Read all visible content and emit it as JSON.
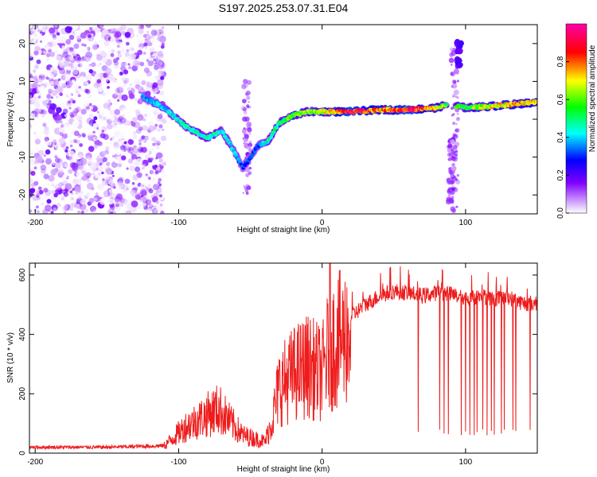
{
  "title": "S197.2025.253.07.31.E04",
  "chart_data": [
    {
      "type": "heatmap",
      "xlabel": "Height of straight line (km)",
      "ylabel": "Frequency (Hz)",
      "xlim": [
        -204,
        150
      ],
      "ylim": [
        -25,
        25
      ],
      "x_ticks": [
        -200,
        -100,
        0,
        100
      ],
      "y_ticks": [
        -20,
        -10,
        0,
        10,
        20
      ],
      "colorbar": {
        "label": "Normalized spectral amplitude",
        "range": [
          0,
          1
        ],
        "ticks": [
          "0.0",
          "0.2",
          "0.4",
          "0.6",
          "0.8"
        ],
        "colors": [
          "#ffffff",
          "#8000ff",
          "#0000ff",
          "#00ffff",
          "#00ff00",
          "#ffff00",
          "#ff0000",
          "#ff00ff"
        ]
      },
      "trace": {
        "x": [
          -125,
          -110,
          -95,
          -80,
          -70,
          -62,
          -55,
          -45,
          -38,
          -30,
          -20,
          -10,
          0,
          20,
          40,
          60,
          80,
          88,
          100,
          120,
          150
        ],
        "y": [
          6,
          3,
          -2,
          -5,
          -3,
          -8,
          -13,
          -7,
          -6,
          -1,
          1,
          2,
          2,
          2,
          2.5,
          2.5,
          3,
          4,
          3,
          3.5,
          4.5
        ],
        "amplitude": [
          0.35,
          0.4,
          0.45,
          0.45,
          0.45,
          0.4,
          0.3,
          0.3,
          0.45,
          0.5,
          0.6,
          0.6,
          0.65,
          0.9,
          0.75,
          0.9,
          0.7,
          0.55,
          0.55,
          0.7,
          0.75
        ]
      },
      "noise_region": [
        -204,
        -110
      ],
      "gap_at": 90
    },
    {
      "type": "line",
      "xlabel": "Height of straight line (km)",
      "ylabel": "SNR (10 * v/v)",
      "xlim": [
        -204,
        150
      ],
      "ylim": [
        0,
        640
      ],
      "x_ticks": [
        -200,
        -100,
        0,
        100
      ],
      "y_ticks": [
        0,
        200,
        400,
        600
      ],
      "color": "#ee1c1c",
      "series": [
        {
          "name": "SNR",
          "x": [
            -200,
            -150,
            -110,
            -95,
            -80,
            -72,
            -65,
            -55,
            -40,
            -35,
            -30,
            -20,
            -10,
            0,
            5,
            10,
            20,
            30,
            40,
            50,
            60,
            70,
            80,
            90,
            100,
            110,
            120,
            130,
            140,
            150
          ],
          "y": [
            20,
            20,
            25,
            90,
            130,
            150,
            110,
            60,
            40,
            120,
            250,
            300,
            330,
            300,
            400,
            420,
            460,
            500,
            530,
            545,
            540,
            530,
            540,
            535,
            520,
            530,
            520,
            525,
            505,
            505
          ]
        }
      ],
      "dropouts_x": [
        67,
        82,
        85,
        88,
        97,
        100,
        103,
        106,
        108,
        112,
        115,
        118,
        120,
        125,
        127,
        133,
        135,
        145
      ]
    }
  ]
}
